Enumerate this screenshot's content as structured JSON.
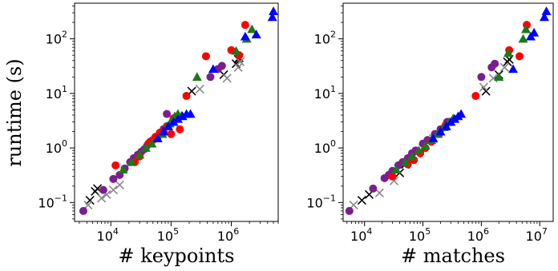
{
  "chart_data": [
    {
      "type": "scatter",
      "xscale": "log",
      "yscale": "log",
      "xlabel": "# keypoints",
      "ylabel": "runtime (s)",
      "xlim": [
        2500,
        6000000
      ],
      "ylim": [
        0.045,
        450
      ],
      "xticks": [
        {
          "value": 10000,
          "base": "10",
          "exp": "4"
        },
        {
          "value": 100000,
          "base": "10",
          "exp": "5"
        },
        {
          "value": 1000000,
          "base": "10",
          "exp": "6"
        }
      ],
      "yticks": [
        {
          "value": 0.1,
          "base": "10",
          "exp": "−1"
        },
        {
          "value": 1,
          "base": "10",
          "exp": "0"
        },
        {
          "value": 10,
          "base": "10",
          "exp": "1"
        },
        {
          "value": 100,
          "base": "10",
          "exp": "2"
        }
      ],
      "grid": false,
      "series": [
        {
          "marker": "x",
          "color": "#000000",
          "points": [
            [
              4500,
              0.11
            ],
            [
              5500,
              0.16
            ],
            [
              6000,
              0.18
            ],
            [
              220000,
              11
            ],
            [
              750000,
              22
            ],
            [
              1200000,
              35
            ],
            [
              1300000,
              42
            ],
            [
              1350000,
              45
            ]
          ]
        },
        {
          "marker": "x",
          "color": "#888888",
          "points": [
            [
              4200,
              0.09
            ],
            [
              7000,
              0.12
            ],
            [
              8500,
              0.14
            ],
            [
              11000,
              0.17
            ],
            [
              14000,
              0.21
            ],
            [
              300000,
              12
            ],
            [
              850000,
              19
            ],
            [
              1300000,
              30
            ],
            [
              1400000,
              38
            ]
          ]
        },
        {
          "marker": "circle",
          "color": "#7a1f8f",
          "points": [
            [
              3500,
              0.07
            ],
            [
              7500,
              0.17
            ],
            [
              11000,
              0.27
            ],
            [
              14000,
              0.32
            ],
            [
              17000,
              0.42
            ],
            [
              21000,
              0.55
            ],
            [
              24000,
              0.65
            ],
            [
              28000,
              0.75
            ],
            [
              32000,
              0.85
            ],
            [
              36000,
              0.95
            ],
            [
              40000,
              1.1
            ],
            [
              45000,
              1.3
            ],
            [
              50000,
              1.4
            ],
            [
              60000,
              1.6
            ],
            [
              65000,
              1.8
            ],
            [
              75000,
              2.2
            ],
            [
              85000,
              4.2
            ],
            [
              450000,
              20
            ],
            [
              600000,
              28
            ],
            [
              700000,
              32
            ]
          ]
        },
        {
          "marker": "circle",
          "color": "#ff0000",
          "points": [
            [
              12000,
              0.48
            ],
            [
              25000,
              0.55
            ],
            [
              30000,
              0.7
            ],
            [
              42000,
              1.2
            ],
            [
              50000,
              1.4
            ],
            [
              55000,
              1.6
            ],
            [
              65000,
              1.9
            ],
            [
              75000,
              2.0
            ],
            [
              85000,
              2.5
            ],
            [
              100000,
              1.8
            ],
            [
              110000,
              3.5
            ],
            [
              140000,
              2.2
            ],
            [
              180000,
              9
            ],
            [
              380000,
              48
            ],
            [
              1000000,
              62
            ],
            [
              1350000,
              50
            ],
            [
              1700000,
              180
            ]
          ]
        },
        {
          "marker": "triangle",
          "color": "#1a7a1a",
          "points": [
            [
              16000,
              0.4
            ],
            [
              22000,
              0.55
            ],
            [
              30000,
              0.75
            ],
            [
              38000,
              1.0
            ],
            [
              48000,
              1.2
            ],
            [
              60000,
              1.5
            ],
            [
              72000,
              1.8
            ],
            [
              85000,
              2.5
            ],
            [
              95000,
              2.8
            ],
            [
              105000,
              3.2
            ],
            [
              115000,
              3.8
            ],
            [
              130000,
              4.2
            ],
            [
              150000,
              3.9
            ],
            [
              270000,
              20
            ],
            [
              1200000,
              60
            ],
            [
              1800000,
              100
            ],
            [
              2200000,
              150
            ]
          ]
        },
        {
          "marker": "triangle",
          "color": "#0000ff",
          "points": [
            [
              60000,
              1.5
            ],
            [
              75000,
              2.0
            ],
            [
              90000,
              2.5
            ],
            [
              110000,
              3.0
            ],
            [
              130000,
              3.4
            ],
            [
              155000,
              3.8
            ],
            [
              180000,
              4.2
            ],
            [
              210000,
              4.2
            ],
            [
              500000,
              28
            ],
            [
              1700000,
              110
            ],
            [
              2600000,
              120
            ],
            [
              4800000,
              250
            ],
            [
              5000000,
              320
            ]
          ]
        }
      ]
    },
    {
      "type": "scatter",
      "xscale": "log",
      "yscale": "log",
      "xlabel": "# matches",
      "ylabel": "",
      "xlim": [
        4300,
        17000000
      ],
      "ylim": [
        0.045,
        450
      ],
      "xticks": [
        {
          "value": 10000,
          "base": "10",
          "exp": "4"
        },
        {
          "value": 100000,
          "base": "10",
          "exp": "5"
        },
        {
          "value": 1000000,
          "base": "10",
          "exp": "6"
        },
        {
          "value": 10000000,
          "base": "10",
          "exp": "7"
        }
      ],
      "yticks": [
        {
          "value": 0.1,
          "base": "10",
          "exp": "−1"
        },
        {
          "value": 1,
          "base": "10",
          "exp": "0"
        },
        {
          "value": 10,
          "base": "10",
          "exp": "1"
        },
        {
          "value": 100,
          "base": "10",
          "exp": "2"
        }
      ],
      "grid": false,
      "series": [
        {
          "marker": "x",
          "color": "#000000",
          "points": [
            [
              9000,
              0.11
            ],
            [
              12000,
              0.14
            ],
            [
              40000,
              0.35
            ],
            [
              50000,
              0.5
            ],
            [
              1200000,
              11
            ],
            [
              2000000,
              22
            ],
            [
              2800000,
              38
            ],
            [
              3000000,
              42
            ]
          ]
        },
        {
          "marker": "x",
          "color": "#888888",
          "points": [
            [
              6500,
              0.09
            ],
            [
              18000,
              0.15
            ],
            [
              32000,
              0.25
            ],
            [
              80000,
              0.8
            ],
            [
              100000,
              1.0
            ],
            [
              150000,
              1.5
            ],
            [
              250000,
              2.5
            ],
            [
              1100000,
              13
            ],
            [
              1600000,
              19
            ],
            [
              2500000,
              30
            ]
          ]
        },
        {
          "marker": "circle",
          "color": "#7a1f8f",
          "points": [
            [
              5500,
              0.07
            ],
            [
              14000,
              0.18
            ],
            [
              22000,
              0.28
            ],
            [
              26000,
              0.32
            ],
            [
              30000,
              0.38
            ],
            [
              38000,
              0.48
            ],
            [
              45000,
              0.55
            ],
            [
              55000,
              0.65
            ],
            [
              65000,
              0.8
            ],
            [
              75000,
              0.9
            ],
            [
              100000,
              1.2
            ],
            [
              120000,
              1.4
            ],
            [
              160000,
              1.8
            ],
            [
              200000,
              2.2
            ],
            [
              260000,
              3.0
            ],
            [
              1000000,
              20
            ],
            [
              1500000,
              30
            ],
            [
              1700000,
              35
            ]
          ]
        },
        {
          "marker": "circle",
          "color": "#ff0000",
          "points": [
            [
              30000,
              0.3
            ],
            [
              55000,
              0.5
            ],
            [
              70000,
              0.6
            ],
            [
              90000,
              0.8
            ],
            [
              110000,
              1.0
            ],
            [
              140000,
              1.3
            ],
            [
              190000,
              1.8
            ],
            [
              240000,
              2.5
            ],
            [
              800000,
              9
            ],
            [
              3000000,
              62
            ],
            [
              4500000,
              48
            ],
            [
              6000000,
              180
            ]
          ]
        },
        {
          "marker": "triangle",
          "color": "#1a7a1a",
          "points": [
            [
              35000,
              0.4
            ],
            [
              50000,
              0.55
            ],
            [
              65000,
              0.7
            ],
            [
              85000,
              0.9
            ],
            [
              110000,
              1.1
            ],
            [
              140000,
              1.4
            ],
            [
              180000,
              1.8
            ],
            [
              230000,
              2.4
            ],
            [
              280000,
              3.0
            ],
            [
              330000,
              3.5
            ],
            [
              2000000,
              20
            ],
            [
              2900000,
              55
            ],
            [
              5200000,
              100
            ],
            [
              5800000,
              150
            ]
          ]
        },
        {
          "marker": "triangle",
          "color": "#0000ff",
          "points": [
            [
              150000,
              1.5
            ],
            [
              200000,
              2.0
            ],
            [
              250000,
              2.5
            ],
            [
              300000,
              3.0
            ],
            [
              350000,
              3.4
            ],
            [
              400000,
              3.8
            ],
            [
              450000,
              4.2
            ],
            [
              3500000,
              28
            ],
            [
              7000000,
              110
            ],
            [
              8000000,
              130
            ],
            [
              12000000,
              250
            ],
            [
              13000000,
              320
            ]
          ]
        }
      ]
    }
  ]
}
